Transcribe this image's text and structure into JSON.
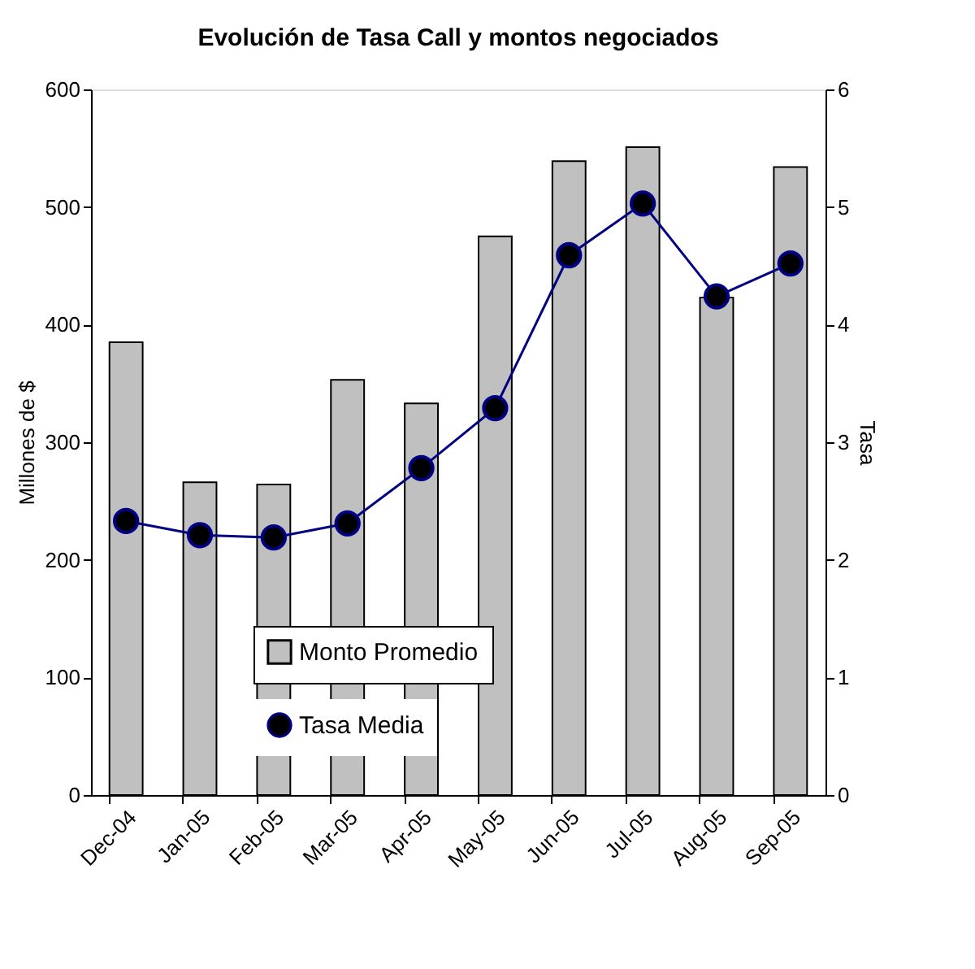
{
  "chart_data": {
    "type": "bar",
    "title": "Evolución de Tasa Call y montos negociados",
    "categories": [
      "Dec-04",
      "Jan-05",
      "Feb-05",
      "Mar-05",
      "Apr-05",
      "May-05",
      "Jun-05",
      "Jul-05",
      "Aug-05",
      "Sep-05"
    ],
    "series": [
      {
        "name": "Monto Promedio",
        "color": "#c0c0c0",
        "values": [
          385,
          266,
          264,
          353,
          333,
          475,
          539,
          551,
          423,
          534
        ]
      },
      {
        "name": "Tasa Media",
        "type": "line",
        "axis": "y2",
        "color": "#000080",
        "marker": "circle",
        "values": [
          2.33,
          2.21,
          2.19,
          2.31,
          2.78,
          3.29,
          4.59,
          5.03,
          4.24,
          4.52
        ]
      }
    ],
    "ylabel": "Millones de $",
    "y2label": "Tasa",
    "ylim": [
      0,
      600
    ],
    "yticks": [
      0,
      100,
      200,
      300,
      400,
      500,
      600
    ],
    "y2lim": [
      0,
      6
    ],
    "y2ticks": [
      0,
      1,
      2,
      3,
      4,
      5,
      6
    ],
    "grid": false,
    "legend": "bottom"
  }
}
